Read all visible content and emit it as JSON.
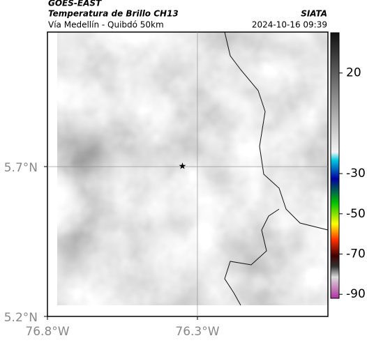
{
  "header": {
    "source": "GOES-EAST",
    "product": "Temperatura de Brillo CH13",
    "region": "Vía Medellín - Quibdó 50km",
    "org": "SIATA",
    "datetime": "2024-10-16 09:39"
  },
  "map": {
    "xlim": [
      -76.8,
      -75.865
    ],
    "ylim": [
      5.2,
      6.149
    ],
    "xticks": [
      {
        "value": -76.8,
        "label": "76.8°W"
      },
      {
        "value": -76.3,
        "label": "76.3°W"
      }
    ],
    "yticks": [
      {
        "value": 5.7,
        "label": "5.7°N"
      },
      {
        "value": 5.2,
        "label": "5.2°N"
      }
    ],
    "grid": true,
    "marker": {
      "lon": -76.35,
      "lat": 5.7
    }
  },
  "colorbar": {
    "lim": [
      40,
      -92
    ],
    "ticks": [
      20,
      -30,
      -50,
      -70,
      -90
    ]
  }
}
